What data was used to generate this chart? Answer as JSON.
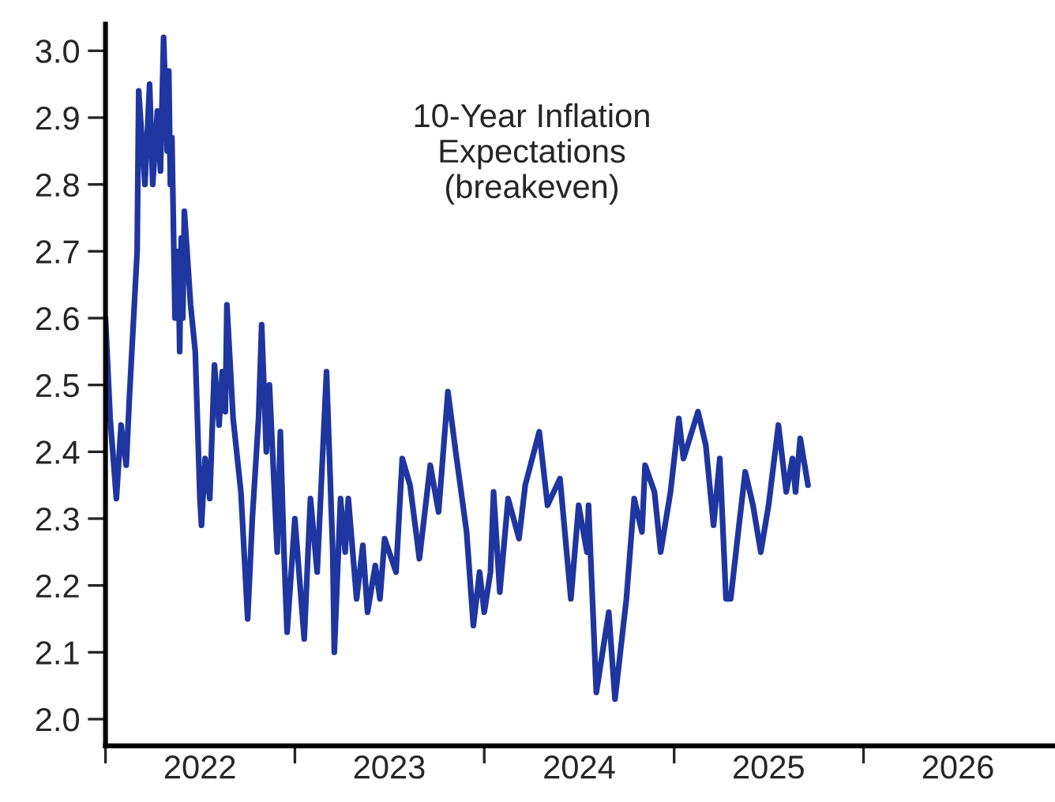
{
  "chart_data": {
    "type": "line",
    "annotations": [
      "10-Year Inflation\nExpectations\n(breakeven)"
    ],
    "x": [
      "2022-01-01",
      "2022-01-10",
      "2022-01-22",
      "2022-01-31",
      "2022-02-10",
      "2022-02-16",
      "2022-03-03",
      "2022-03-06",
      "2022-03-18",
      "2022-03-27",
      "2022-04-02",
      "2022-04-11",
      "2022-04-17",
      "2022-04-23",
      "2022-04-30",
      "2022-05-03",
      "2022-05-06",
      "2022-05-09",
      "2022-05-15",
      "2022-05-21",
      "2022-05-24",
      "2022-05-27",
      "2022-05-30",
      "2022-06-02",
      "2022-06-14",
      "2022-06-23",
      "2022-07-02",
      "2022-07-05",
      "2022-07-12",
      "2022-07-21",
      "2022-07-30",
      "2022-08-08",
      "2022-08-14",
      "2022-08-20",
      "2022-08-23",
      "2022-09-04",
      "2022-09-19",
      "2022-10-02",
      "2022-10-11",
      "2022-10-23",
      "2022-10-29",
      "2022-11-07",
      "2022-11-13",
      "2022-11-28",
      "2022-12-04",
      "2022-12-11",
      "2022-12-17",
      "2023-01-01",
      "2023-01-19",
      "2023-01-31",
      "2023-02-13",
      "2023-02-25",
      "2023-03-03",
      "2023-03-15",
      "2023-03-18",
      "2023-03-30",
      "2023-04-08",
      "2023-04-14",
      "2023-04-30",
      "2023-05-12",
      "2023-05-21",
      "2023-06-05",
      "2023-06-14",
      "2023-06-23",
      "2023-07-15",
      "2023-07-27",
      "2023-08-11",
      "2023-08-29",
      "2023-09-19",
      "2023-10-05",
      "2023-10-23",
      "2023-11-07",
      "2023-11-28",
      "2023-12-11",
      "2023-12-23",
      "2024-01-01",
      "2024-01-13",
      "2024-01-19",
      "2024-01-31",
      "2024-02-16",
      "2024-03-08",
      "2024-03-20",
      "2024-04-16",
      "2024-05-02",
      "2024-05-26",
      "2024-06-16",
      "2024-07-01",
      "2024-07-17",
      "2024-07-20",
      "2024-08-04",
      "2024-08-28",
      "2024-09-09",
      "2024-10-01",
      "2024-10-16",
      "2024-10-31",
      "2024-11-06",
      "2024-11-24",
      "2024-12-06",
      "2024-12-25",
      "2025-01-10",
      "2025-01-19",
      "2025-02-16",
      "2025-03-03",
      "2025-03-18",
      "2025-03-30",
      "2025-04-11",
      "2025-04-20",
      "2025-05-06",
      "2025-05-18",
      "2025-06-02",
      "2025-06-17",
      "2025-07-02",
      "2025-07-21",
      "2025-08-05",
      "2025-08-17",
      "2025-08-23",
      "2025-09-01",
      "2025-09-16"
    ],
    "series": [
      {
        "color": "#1f35a0",
        "values": [
          2.6,
          2.45,
          2.33,
          2.44,
          2.38,
          2.48,
          2.7,
          2.94,
          2.8,
          2.95,
          2.8,
          2.91,
          2.82,
          3.02,
          2.85,
          2.97,
          2.8,
          2.87,
          2.6,
          2.7,
          2.55,
          2.72,
          2.6,
          2.76,
          2.62,
          2.55,
          2.33,
          2.29,
          2.39,
          2.33,
          2.53,
          2.44,
          2.52,
          2.46,
          2.62,
          2.45,
          2.34,
          2.15,
          2.3,
          2.45,
          2.59,
          2.4,
          2.5,
          2.25,
          2.43,
          2.25,
          2.13,
          2.3,
          2.12,
          2.33,
          2.22,
          2.42,
          2.52,
          2.25,
          2.1,
          2.33,
          2.25,
          2.33,
          2.18,
          2.26,
          2.16,
          2.23,
          2.18,
          2.27,
          2.22,
          2.39,
          2.35,
          2.24,
          2.38,
          2.31,
          2.49,
          2.4,
          2.28,
          2.14,
          2.22,
          2.16,
          2.22,
          2.34,
          2.19,
          2.33,
          2.27,
          2.35,
          2.43,
          2.32,
          2.36,
          2.18,
          2.32,
          2.25,
          2.32,
          2.04,
          2.16,
          2.03,
          2.18,
          2.33,
          2.28,
          2.38,
          2.34,
          2.25,
          2.34,
          2.45,
          2.39,
          2.46,
          2.41,
          2.29,
          2.39,
          2.18,
          2.18,
          2.29,
          2.37,
          2.32,
          2.25,
          2.32,
          2.44,
          2.34,
          2.39,
          2.34,
          2.42,
          2.35
        ]
      }
    ],
    "xlim": [
      "2022-01-01",
      "2027-01-01"
    ],
    "xticks": [
      {
        "value": "2022-01-01",
        "label": null
      },
      {
        "value": "2022-07-02",
        "label": "2022"
      },
      {
        "value": "2023-01-01",
        "label": null
      },
      {
        "value": "2023-07-02",
        "label": "2023"
      },
      {
        "value": "2024-01-01",
        "label": null
      },
      {
        "value": "2024-07-02",
        "label": "2024"
      },
      {
        "value": "2025-01-01",
        "label": null
      },
      {
        "value": "2025-07-02",
        "label": "2025"
      },
      {
        "value": "2026-01-01",
        "label": null
      },
      {
        "value": "2026-07-02",
        "label": "2026"
      }
    ],
    "ylim": [
      1.96,
      3.04
    ],
    "yticks": [
      {
        "value": 2.0,
        "label": "2.0"
      },
      {
        "value": 2.1,
        "label": "2.1"
      },
      {
        "value": 2.2,
        "label": "2.2"
      },
      {
        "value": 2.3,
        "label": "2.3"
      },
      {
        "value": 2.4,
        "label": "2.4"
      },
      {
        "value": 2.5,
        "label": "2.5"
      },
      {
        "value": 2.6,
        "label": "2.6"
      },
      {
        "value": 2.7,
        "label": "2.7"
      },
      {
        "value": 2.8,
        "label": "2.8"
      },
      {
        "value": 2.9,
        "label": "2.9"
      },
      {
        "value": 3.0,
        "label": "3.0"
      }
    ],
    "grid": false,
    "legend": false
  }
}
